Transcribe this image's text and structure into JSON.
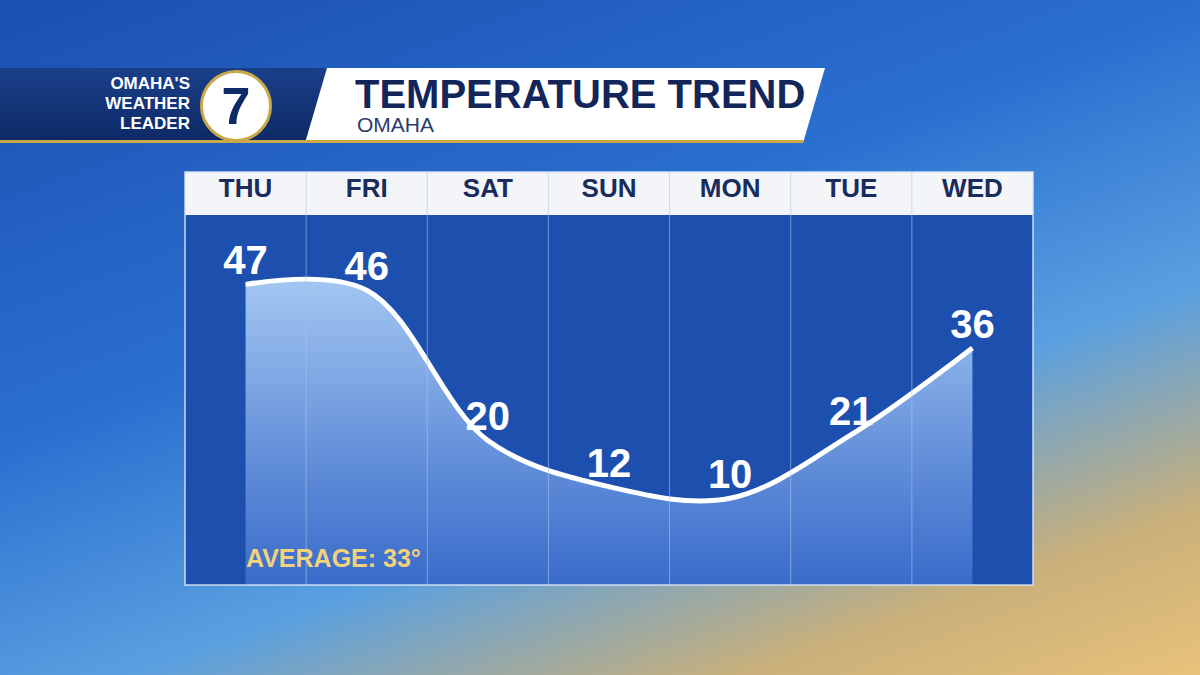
{
  "chart_data": {
    "type": "line",
    "title": "TEMPERATURE TREND",
    "subtitle": "OMAHA",
    "logo": {
      "lines": [
        "OMAHA'S",
        "WEATHER",
        "LEADER"
      ],
      "number": "7"
    },
    "categories": [
      "THU",
      "FRI",
      "SAT",
      "SUN",
      "MON",
      "TUE",
      "WED"
    ],
    "values": [
      47,
      46,
      20,
      12,
      10,
      21,
      36
    ],
    "color": "#ffffff",
    "ylim": [
      -5,
      59
    ],
    "yticks": [],
    "grid": false,
    "data_labels": true,
    "tick_labels": "x",
    "marker": "none",
    "line_style": "spline",
    "annotations": [
      "AVERAGE: 33°"
    ]
  }
}
